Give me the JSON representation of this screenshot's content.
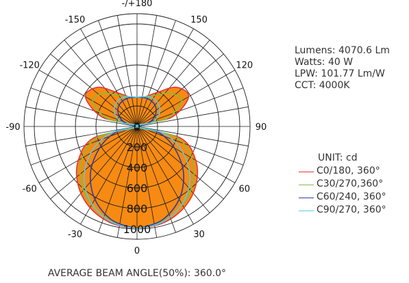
{
  "chart_data": {
    "type": "polar",
    "angular_labels": [
      {
        "angle": 180,
        "label": "-/+180"
      },
      {
        "angle": 150,
        "label": "150"
      },
      {
        "angle": 120,
        "label": "120"
      },
      {
        "angle": 90,
        "label": "90"
      },
      {
        "angle": 60,
        "label": "60"
      },
      {
        "angle": 30,
        "label": "30"
      },
      {
        "angle": 0,
        "label": "0"
      },
      {
        "angle": -30,
        "label": "-30"
      },
      {
        "angle": -60,
        "label": "-60"
      },
      {
        "angle": -90,
        "label": "-90"
      },
      {
        "angle": -120,
        "label": "-120"
      },
      {
        "angle": -150,
        "label": "-150"
      }
    ],
    "angular_grid_step_deg": 10,
    "radial_ticks": [
      0,
      200,
      400,
      600,
      800,
      1000
    ],
    "radial_max": 1100,
    "unit": "cd",
    "series": [
      {
        "name": "C0/180, 360°",
        "color": "#e8323c",
        "angles": [
          0,
          15,
          30,
          45,
          60,
          75,
          90,
          105,
          120,
          135,
          150,
          165,
          180
        ],
        "values": [
          1000,
          975,
          915,
          810,
          660,
          440,
          0,
          350,
          580,
          540,
          380,
          300,
          285
        ]
      },
      {
        "name": "C30/270,360°",
        "color": "#7cc142",
        "angles": [
          0,
          15,
          30,
          45,
          60,
          75,
          90,
          105,
          120,
          135,
          150,
          165,
          180
        ],
        "values": [
          1000,
          960,
          880,
          770,
          615,
          390,
          0,
          300,
          500,
          455,
          350,
          300,
          285
        ]
      },
      {
        "name": "C60/240, 360°",
        "color": "#2d3b9c",
        "angles": [
          0,
          15,
          30,
          45,
          60,
          75,
          90,
          105,
          120,
          135,
          150,
          165,
          180
        ],
        "values": [
          1000,
          945,
          820,
          640,
          420,
          210,
          0,
          110,
          200,
          260,
          285,
          290,
          285
        ]
      },
      {
        "name": "C90/270, 360°",
        "color": "#5bc8e8",
        "angles": [
          0,
          15,
          30,
          45,
          60,
          75,
          90,
          105,
          120,
          135,
          150,
          165,
          180
        ],
        "values": [
          1000,
          965,
          875,
          730,
          520,
          280,
          0,
          150,
          250,
          300,
          315,
          300,
          285
        ]
      }
    ]
  },
  "info": {
    "lumens": "Lumens: 4070.6 Lm",
    "watts": "Watts: 40 W",
    "lpw": "LPW: 101.77 Lm/W",
    "cct": "CCT: 4000K"
  },
  "legend": {
    "unit": "UNIT: cd"
  },
  "footer": {
    "beam_angle": "AVERAGE BEAM ANGLE(50%): 360.0°"
  },
  "colors": {
    "fill": "#f78a12",
    "grid": "#1a1a1a"
  }
}
